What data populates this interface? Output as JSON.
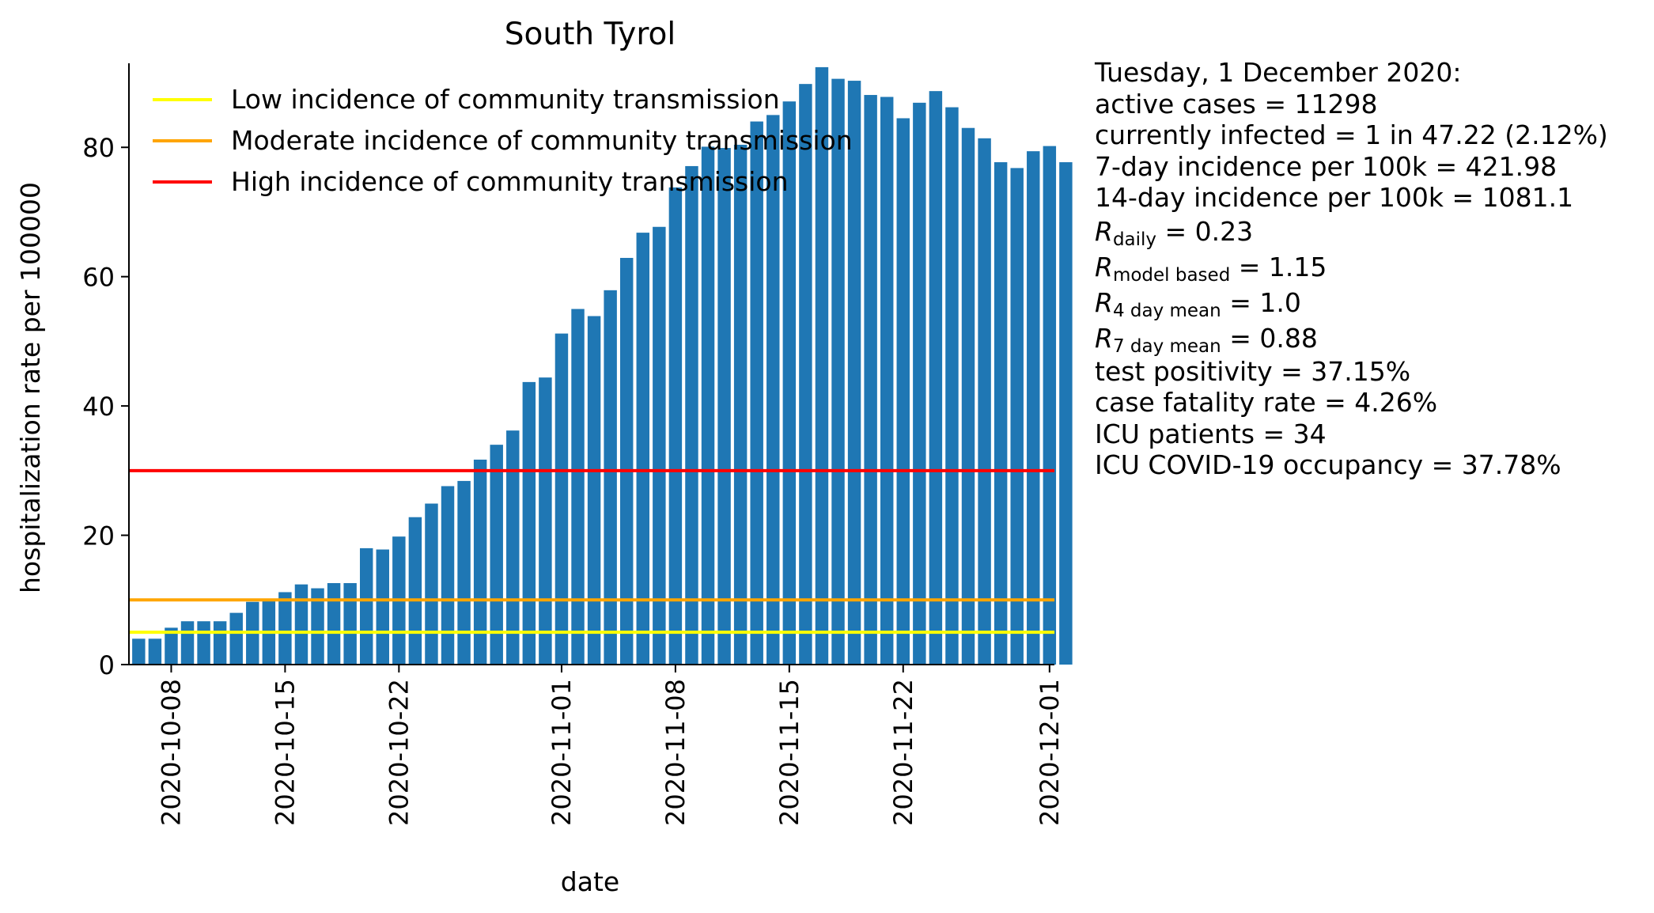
{
  "chart_data": {
    "type": "bar",
    "title": "South Tyrol",
    "xlabel": "date",
    "ylabel": "hospitalization rate per 100000",
    "ylim": [
      0,
      93
    ],
    "yticks": [
      0,
      20,
      40,
      60,
      80
    ],
    "x_start": "2020-10-06",
    "x_end": "2020-12-01",
    "xticks": [
      "2020-10-08",
      "2020-10-15",
      "2020-10-22",
      "2020-11-01",
      "2020-11-08",
      "2020-11-15",
      "2020-11-22",
      "2020-12-01"
    ],
    "values": [
      4.0,
      4.0,
      5.7,
      6.7,
      6.7,
      6.7,
      8.0,
      9.7,
      10.0,
      11.2,
      12.4,
      11.8,
      12.6,
      12.6,
      18.0,
      17.8,
      19.8,
      22.8,
      24.9,
      27.6,
      28.4,
      31.7,
      34.0,
      36.2,
      43.7,
      44.4,
      51.2,
      55.0,
      53.9,
      57.9,
      62.9,
      66.8,
      67.7,
      73.8,
      77.1,
      80.1,
      79.9,
      80.4,
      84.0,
      85.0,
      87.1,
      89.8,
      92.4,
      90.6,
      90.3,
      88.1,
      87.8,
      84.5,
      86.9,
      88.7,
      86.2,
      83.0,
      81.4,
      77.7,
      76.8,
      79.4,
      80.2,
      77.7
    ],
    "bar_color": "#1f77b4",
    "thresholds": [
      {
        "name": "Low incidence of community transmission",
        "value": 5,
        "color": "#ffff00"
      },
      {
        "name": "Moderate incidence of community transmission",
        "value": 10,
        "color": "#ffa500"
      },
      {
        "name": "High incidence of community transmission",
        "value": 30,
        "color": "#ff0000"
      }
    ],
    "legend_position": "top-left"
  },
  "stats": {
    "date_line": "Tuesday, 1 December 2020:",
    "active_cases": "active cases = 11298",
    "currently_infected": "currently infected = 1 in 47.22 (2.12%)",
    "incidence_7day": "7-day incidence per 100k = 421.98",
    "incidence_14day": "14-day incidence per 100k = 1081.1",
    "r_symbol": "R",
    "r_daily_sub": "daily",
    "r_daily_val": " = 0.23",
    "r_model_sub": "model based",
    "r_model_val": " = 1.15",
    "r_4day_sub": "4 day mean",
    "r_4day_val": " = 1.0",
    "r_7day_sub": "7 day mean",
    "r_7day_val": " = 0.88",
    "test_positivity": "test positivity = 37.15%",
    "case_fatality": "case fatality rate = 4.26%",
    "icu_patients": "ICU patients = 34",
    "icu_occupancy": "ICU COVID-19 occupancy = 37.78%"
  }
}
